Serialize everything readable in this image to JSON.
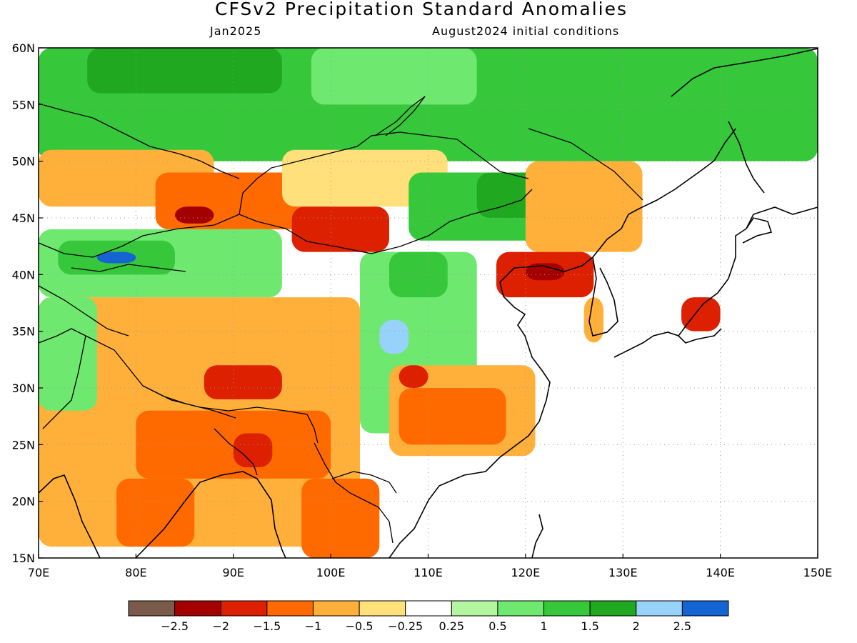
{
  "header": {
    "title": "CFSv2 Precipitation Standard Anomalies",
    "valid_month": "Jan2025",
    "init_conditions": "August2024 initial conditions"
  },
  "map": {
    "lon_range": [
      70,
      150
    ],
    "lat_range": [
      15,
      60
    ],
    "lat_ticks": [
      "15N",
      "20N",
      "25N",
      "30N",
      "35N",
      "40N",
      "45N",
      "50N",
      "55N",
      "60N"
    ],
    "lon_ticks": [
      "70E",
      "80E",
      "90E",
      "100E",
      "110E",
      "120E",
      "130E",
      "140E",
      "150E"
    ],
    "gridlines": "dotted"
  },
  "colorbar": {
    "colors": [
      "#7a5a4a",
      "#a50000",
      "#dd2000",
      "#ff6a00",
      "#ffb03a",
      "#ffe07a",
      "#ffffff",
      "#b4f5a0",
      "#6ee86e",
      "#36c83a",
      "#20a820",
      "#96d2fa",
      "#1464d2"
    ],
    "labels": [
      "−2.5",
      "−2",
      "−1.5",
      "−1",
      "−0.5",
      "−0.25",
      "0.25",
      "0.5",
      "1",
      "1.5",
      "2",
      "2.5"
    ]
  },
  "anomaly_regions": [
    {
      "lon": [
        70,
        150
      ],
      "lat": [
        50,
        60
      ],
      "color": "#36c83a"
    },
    {
      "lon": [
        75,
        95
      ],
      "lat": [
        56,
        60
      ],
      "color": "#20a820"
    },
    {
      "lon": [
        98,
        115
      ],
      "lat": [
        55,
        60
      ],
      "color": "#6ee86e"
    },
    {
      "lon": [
        70,
        88
      ],
      "lat": [
        46,
        51
      ],
      "color": "#ffb03a"
    },
    {
      "lon": [
        82,
        100
      ],
      "lat": [
        44,
        49
      ],
      "color": "#ff6a00"
    },
    {
      "lon": [
        96,
        106
      ],
      "lat": [
        42,
        46
      ],
      "color": "#dd2000"
    },
    {
      "lon": [
        84,
        88
      ],
      "lat": [
        44.5,
        46
      ],
      "color": "#a50000"
    },
    {
      "lon": [
        70,
        95
      ],
      "lat": [
        38,
        44
      ],
      "color": "#6ee86e"
    },
    {
      "lon": [
        72,
        84
      ],
      "lat": [
        40,
        43
      ],
      "color": "#36c83a"
    },
    {
      "lon": [
        76,
        80
      ],
      "lat": [
        41,
        42
      ],
      "color": "#1464d2"
    },
    {
      "lon": [
        95,
        112
      ],
      "lat": [
        46,
        51
      ],
      "color": "#ffe07a"
    },
    {
      "lon": [
        108,
        122
      ],
      "lat": [
        43,
        49
      ],
      "color": "#36c83a"
    },
    {
      "lon": [
        115,
        122
      ],
      "lat": [
        45,
        49
      ],
      "color": "#20a820"
    },
    {
      "lon": [
        120,
        132
      ],
      "lat": [
        42,
        50
      ],
      "color": "#ffb03a"
    },
    {
      "lon": [
        117,
        127
      ],
      "lat": [
        38,
        42
      ],
      "color": "#dd2000"
    },
    {
      "lon": [
        120,
        124
      ],
      "lat": [
        39.5,
        41
      ],
      "color": "#a50000"
    },
    {
      "lon": [
        103,
        115
      ],
      "lat": [
        26,
        42
      ],
      "color": "#6ee86e"
    },
    {
      "lon": [
        106,
        112
      ],
      "lat": [
        38,
        42
      ],
      "color": "#36c83a"
    },
    {
      "lon": [
        105,
        108
      ],
      "lat": [
        33,
        36
      ],
      "color": "#96d2fa"
    },
    {
      "lon": [
        70,
        103
      ],
      "lat": [
        16,
        38
      ],
      "color": "#ffb03a"
    },
    {
      "lon": [
        87,
        95
      ],
      "lat": [
        29,
        32
      ],
      "color": "#dd2000"
    },
    {
      "lon": [
        80,
        100
      ],
      "lat": [
        22,
        28
      ],
      "color": "#ff6a00"
    },
    {
      "lon": [
        90,
        94
      ],
      "lat": [
        23,
        26
      ],
      "color": "#dd2000"
    },
    {
      "lon": [
        78,
        86
      ],
      "lat": [
        16,
        22
      ],
      "color": "#ff6a00"
    },
    {
      "lon": [
        97,
        105
      ],
      "lat": [
        15,
        22
      ],
      "color": "#ff6a00"
    },
    {
      "lon": [
        106,
        121
      ],
      "lat": [
        24,
        32
      ],
      "color": "#ffb03a"
    },
    {
      "lon": [
        107,
        118
      ],
      "lat": [
        25,
        30
      ],
      "color": "#ff6a00"
    },
    {
      "lon": [
        107,
        110
      ],
      "lat": [
        30,
        32
      ],
      "color": "#dd2000"
    },
    {
      "lon": [
        126,
        128
      ],
      "lat": [
        34,
        38
      ],
      "color": "#ffb03a"
    },
    {
      "lon": [
        136,
        140
      ],
      "lat": [
        35,
        38
      ],
      "color": "#dd2000"
    },
    {
      "lon": [
        70,
        76
      ],
      "lat": [
        28,
        38
      ],
      "color": "#6ee86e"
    }
  ]
}
